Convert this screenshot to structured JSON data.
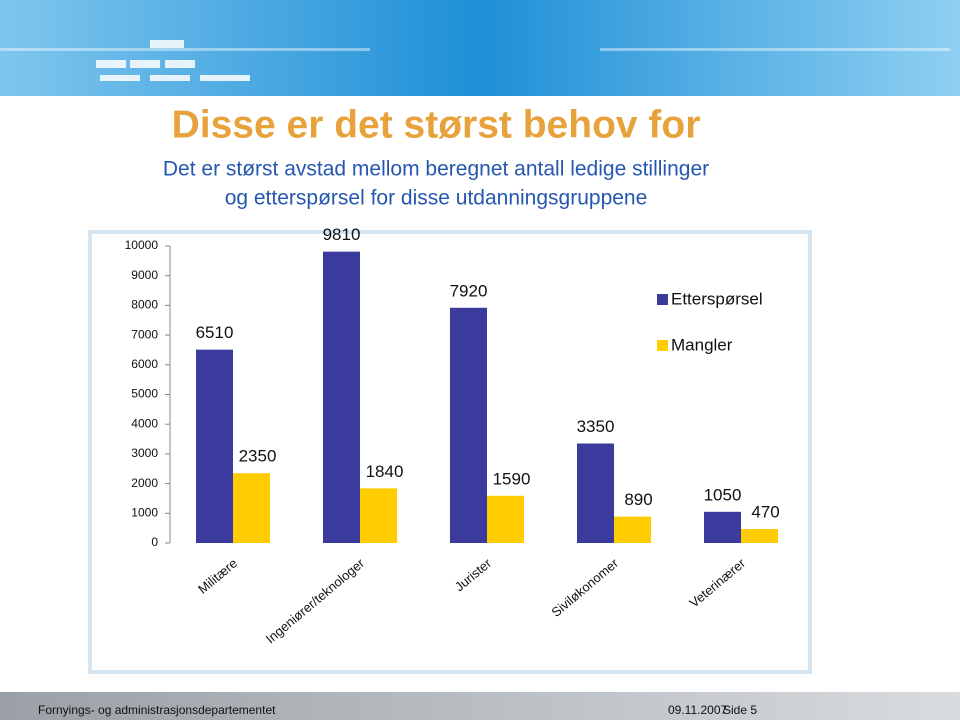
{
  "header": {
    "title": "Disse er det størst behov for",
    "subtitle_lines": [
      "Det er størst avstad mellom beregnet antall ledige stillinger",
      "og etterspørsel for disse utdanningsgruppene"
    ]
  },
  "chart_data": {
    "type": "bar",
    "categories": [
      "Militære",
      "Ingeniører/teknologer",
      "Jurister",
      "Siviløkonomer",
      "Veterinærer"
    ],
    "series": [
      {
        "name": "Etterspørsel",
        "color": "#3b3b9e",
        "values": [
          6510,
          9810,
          7920,
          3350,
          1050
        ]
      },
      {
        "name": "Mangler",
        "color": "#ffcc00",
        "values": [
          2350,
          1840,
          1590,
          890,
          470
        ]
      }
    ],
    "ylim": [
      0,
      10000
    ],
    "yticks": [
      0,
      1000,
      2000,
      3000,
      4000,
      5000,
      6000,
      7000,
      8000,
      9000,
      10000
    ],
    "legend": "right"
  },
  "footer": {
    "department": "Fornyings- og administrasjonsdepartementet",
    "date": "09.11.2007",
    "page": "Side 5"
  }
}
